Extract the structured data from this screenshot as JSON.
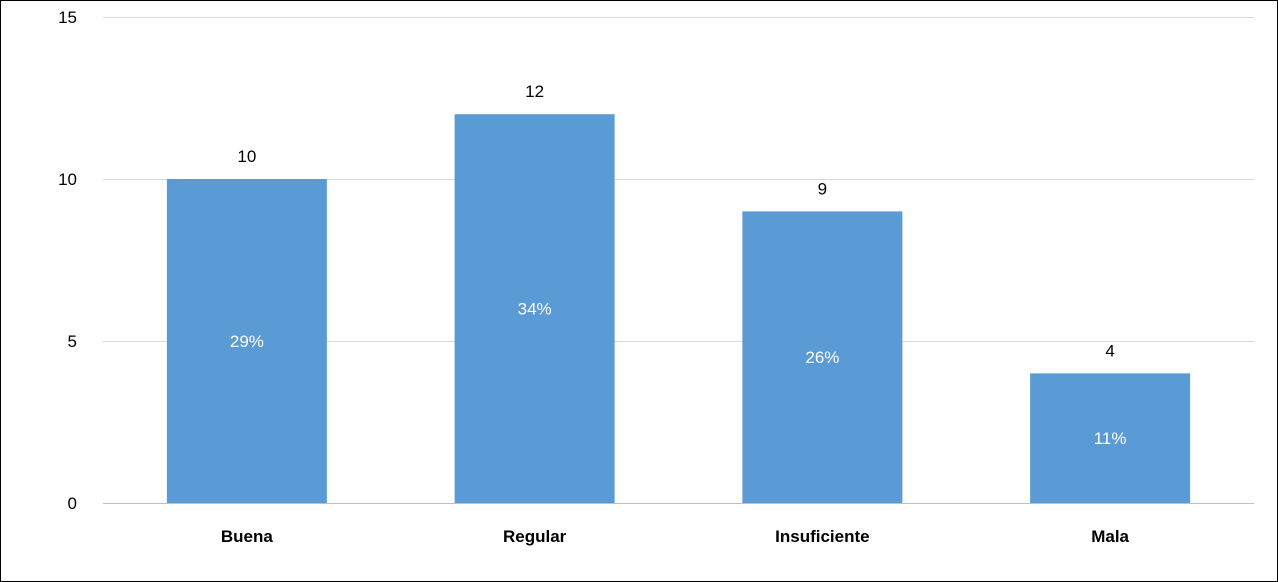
{
  "chart_data": {
    "type": "bar",
    "categories": [
      "Buena",
      "Regular",
      "Insuficiente",
      "Mala"
    ],
    "values": [
      10,
      12,
      9,
      4
    ],
    "percent_labels": [
      "29%",
      "34%",
      "26%",
      "11%"
    ],
    "value_labels": [
      "10",
      "12",
      "9",
      "4"
    ],
    "ylim": [
      0,
      15
    ],
    "yticks": [
      0,
      5,
      10,
      15
    ],
    "ytick_labels": [
      "0",
      "5",
      "10",
      "15"
    ],
    "grid": true,
    "colors": {
      "bar": "#5B9BD5",
      "grid": "#D9D9D9",
      "axis": "#BFBFBF"
    }
  }
}
